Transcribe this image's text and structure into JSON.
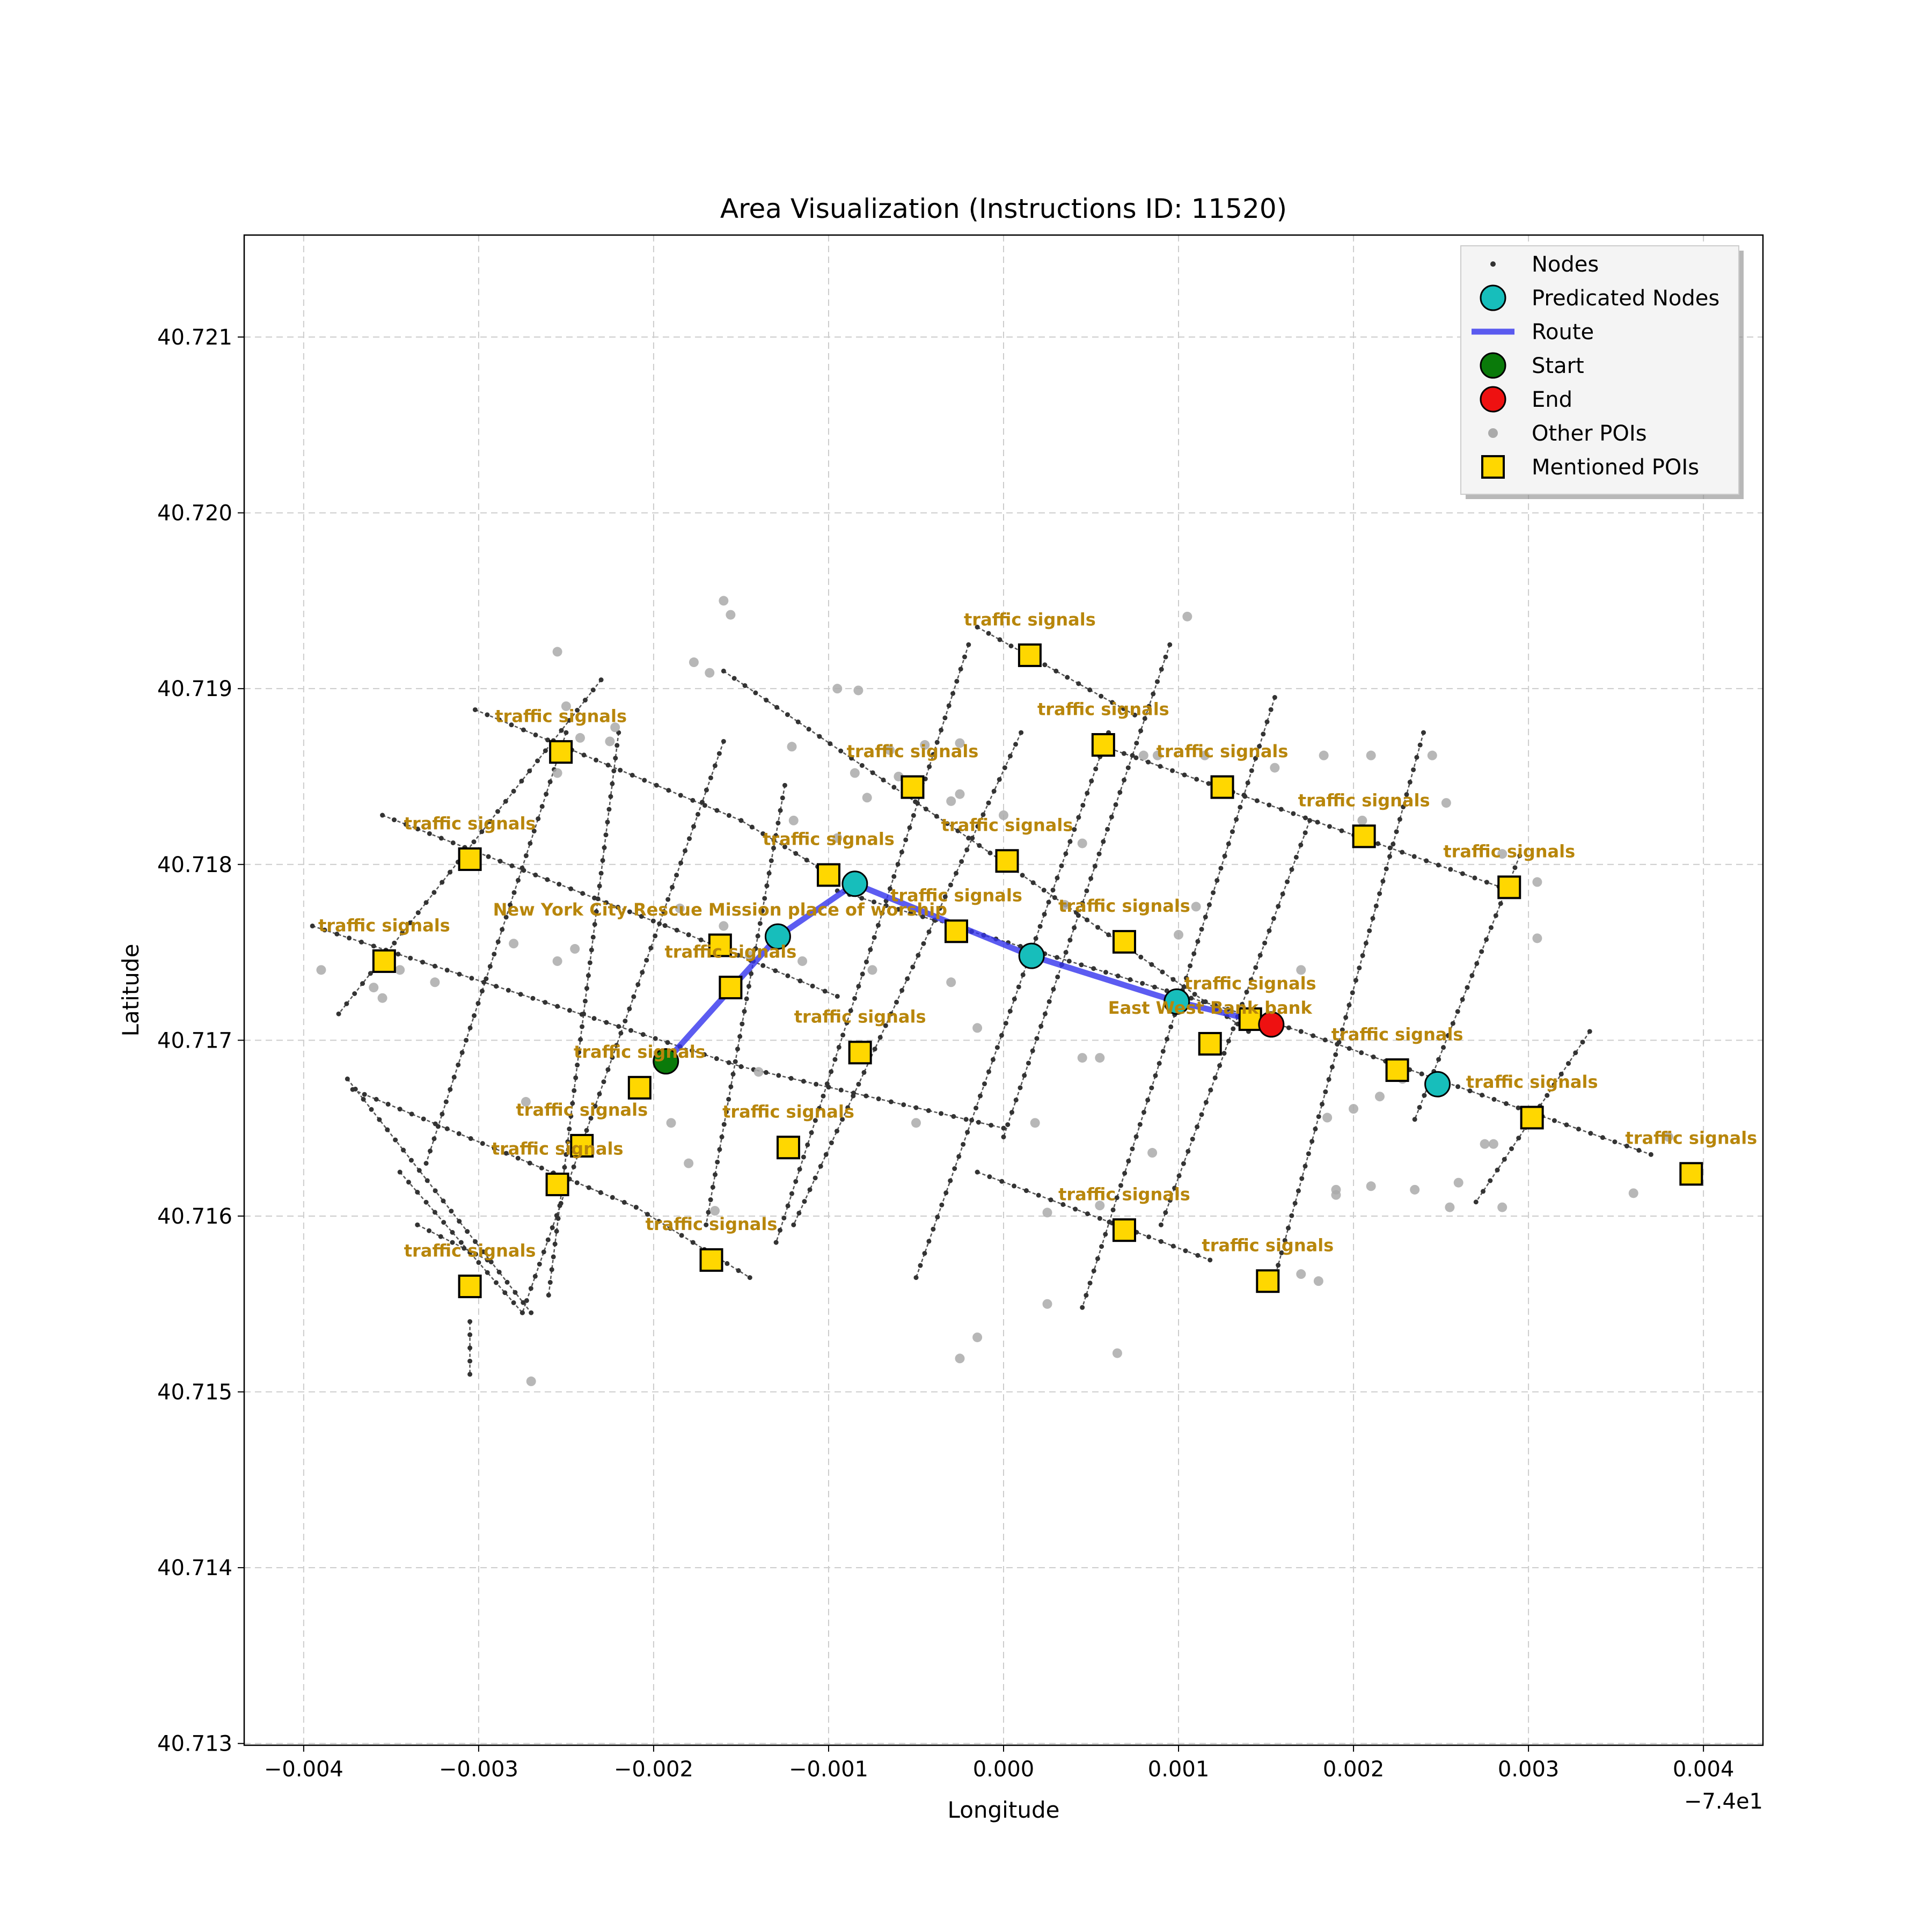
{
  "chart_data": {
    "type": "scatter",
    "title": "Area Visualization (Instructions ID: 11520)",
    "xlabel": "Longitude",
    "ylabel": "Latitude",
    "x_offset_label": "−7.4e1",
    "xlim": [
      -0.00434,
      0.00434
    ],
    "ylim": [
      40.71299,
      40.72158
    ],
    "x_ticks": [
      -0.004,
      -0.003,
      -0.002,
      -0.001,
      0.0,
      0.001,
      0.002,
      0.003,
      0.004
    ],
    "x_tick_labels": [
      "−0.004",
      "−0.003",
      "−0.002",
      "−0.001",
      "0.000",
      "0.001",
      "0.002",
      "0.003",
      "0.004"
    ],
    "y_ticks": [
      40.713,
      40.714,
      40.715,
      40.716,
      40.717,
      40.718,
      40.719,
      40.72,
      40.721
    ],
    "y_tick_labels": [
      "40.713",
      "40.714",
      "40.715",
      "40.716",
      "40.717",
      "40.718",
      "40.719",
      "40.720",
      "40.721"
    ],
    "grid": true,
    "legend_position": "top-right",
    "legend": [
      {
        "key": "nodes",
        "label": "Nodes"
      },
      {
        "key": "predicted",
        "label": "Predicated Nodes"
      },
      {
        "key": "route",
        "label": "Route"
      },
      {
        "key": "start",
        "label": "Start"
      },
      {
        "key": "end",
        "label": "End"
      },
      {
        "key": "other_pois",
        "label": "Other POIs"
      },
      {
        "key": "mentioned_pois",
        "label": "Mentioned POIs"
      }
    ],
    "colors": {
      "nodes": "#333333",
      "roads": "#555555",
      "predicted": "#17bebb",
      "route": "#3333ee",
      "start": "#0a7a0a",
      "end": "#ee1111",
      "other_pois": "#aaaaaa",
      "mentioned_pois": "#ffd700",
      "poi_label": "#b8860b",
      "grid": "#cccccc"
    },
    "road_segments": [
      [
        [
          -0.00395,
          40.71765
        ],
        [
          -0.0015,
          40.71685
        ],
        [
          0.0,
          40.7165
        ]
      ],
      [
        [
          -0.00355,
          40.71828
        ],
        [
          -0.0018,
          40.7176
        ],
        [
          -0.00095,
          40.71725
        ]
      ],
      [
        [
          -0.00302,
          40.71888
        ],
        [
          -0.0015,
          40.71825
        ],
        [
          -0.001,
          40.71795
        ]
      ],
      [
        [
          -0.00372,
          40.71672
        ],
        [
          -0.0021,
          40.71605
        ],
        [
          -0.00145,
          40.71565
        ]
      ],
      [
        [
          -0.00345,
          40.71625
        ],
        [
          -0.00275,
          40.71545
        ]
      ],
      [
        [
          -0.00335,
          40.71595
        ],
        [
          -0.00295,
          40.71575
        ]
      ],
      [
        [
          -0.00095,
          40.71785
        ],
        [
          0.0017,
          40.71705
        ],
        [
          0.0037,
          40.71635
        ]
      ],
      [
        [
          -0.0016,
          40.7191
        ],
        [
          -0.0002,
          40.71815
        ],
        [
          0.0014,
          40.71705
        ]
      ],
      [
        [
          -0.00015,
          40.71935
        ],
        [
          0.00075,
          40.71885
        ]
      ],
      [
        [
          0.00055,
          40.71868
        ],
        [
          0.0029,
          40.71785
        ]
      ],
      [
        [
          -0.00015,
          40.71625
        ],
        [
          0.00118,
          40.71575
        ]
      ],
      [
        [
          -0.0023,
          40.71905
        ],
        [
          -0.0038,
          40.71715
        ]
      ],
      [
        [
          -0.0025,
          40.71875
        ],
        [
          -0.0033,
          40.7163
        ]
      ],
      [
        [
          -0.00375,
          40.71678
        ],
        [
          -0.0027,
          40.71545
        ]
      ],
      [
        [
          -0.00305,
          40.7154
        ],
        [
          -0.00305,
          40.7151
        ]
      ],
      [
        [
          -0.0022,
          40.71875
        ],
        [
          -0.0026,
          40.71555
        ]
      ],
      [
        [
          -0.0016,
          40.7187
        ],
        [
          -0.00275,
          40.71545
        ]
      ],
      [
        [
          -0.00125,
          40.71845
        ],
        [
          -0.0017,
          40.71595
        ]
      ],
      [
        [
          -0.0002,
          40.71925
        ],
        [
          -0.0013,
          40.71585
        ]
      ],
      [
        [
          0.0001,
          40.71875
        ],
        [
          -0.0012,
          40.71595
        ]
      ],
      [
        [
          0.0006,
          40.71875
        ],
        [
          -0.0005,
          40.71565
        ]
      ],
      [
        [
          0.00095,
          40.71925
        ],
        [
          0.0,
          40.71645
        ]
      ],
      [
        [
          0.00155,
          40.71895
        ],
        [
          0.00045,
          40.71548
        ]
      ],
      [
        [
          0.00175,
          40.71825
        ],
        [
          0.0009,
          40.71595
        ]
      ],
      [
        [
          0.0024,
          40.71875
        ],
        [
          0.00155,
          40.71565
        ]
      ],
      [
        [
          0.00335,
          40.71705
        ],
        [
          0.0027,
          40.71608
        ]
      ],
      [
        [
          0.00295,
          40.71805
        ],
        [
          0.00235,
          40.71655
        ]
      ]
    ],
    "route": [
      [
        -0.00193,
        40.71688
      ],
      [
        -0.00129,
        40.71759
      ],
      [
        -0.00085,
        40.71789
      ],
      [
        0.00016,
        40.71748
      ],
      [
        0.00099,
        40.71722
      ],
      [
        0.00153,
        40.71709
      ]
    ],
    "predicted_nodes": [
      [
        -0.00129,
        40.71759
      ],
      [
        -0.00085,
        40.71789
      ],
      [
        0.00016,
        40.71748
      ],
      [
        0.00099,
        40.71722
      ],
      [
        0.00248,
        40.71675
      ]
    ],
    "start": [
      -0.00193,
      40.71688
    ],
    "end": [
      0.00153,
      40.71709
    ],
    "other_pois": [
      [
        -0.00255,
        40.71921
      ],
      [
        -0.0025,
        40.7189
      ],
      [
        -0.00242,
        40.71872
      ],
      [
        -0.00222,
        40.71878
      ],
      [
        -0.00225,
        40.7187
      ],
      [
        -0.00255,
        40.71852
      ],
      [
        -0.00177,
        40.71915
      ],
      [
        -0.00168,
        40.71909
      ],
      [
        -0.0016,
        40.7195
      ],
      [
        -0.00156,
        40.71942
      ],
      [
        -0.00095,
        40.719
      ],
      [
        -0.00083,
        40.71899
      ],
      [
        -0.00121,
        40.71867
      ],
      [
        -0.00065,
        40.71865
      ],
      [
        -0.00045,
        40.71868
      ],
      [
        -0.00025,
        40.71869
      ],
      [
        -0.00085,
        40.71852
      ],
      [
        -0.00078,
        40.71838
      ],
      [
        -0.0006,
        40.7185
      ],
      [
        -0.0003,
        40.71836
      ],
      [
        -0.0012,
        40.71825
      ],
      [
        -0.00095,
        40.71815
      ],
      [
        0.0,
        40.71828
      ],
      [
        0.00045,
        40.71812
      ],
      [
        0.00105,
        40.71941
      ],
      [
        0.00088,
        40.71862
      ],
      [
        0.0008,
        40.71862
      ],
      [
        0.00115,
        40.71862
      ],
      [
        0.00155,
        40.71855
      ],
      [
        0.00183,
        40.71862
      ],
      [
        0.0021,
        40.71862
      ],
      [
        0.00245,
        40.71862
      ],
      [
        0.00253,
        40.71835
      ],
      [
        0.00205,
        40.71825
      ],
      [
        0.00285,
        40.71806
      ],
      [
        0.00305,
        40.7179
      ],
      [
        -0.00255,
        40.71745
      ],
      [
        -0.00245,
        40.71752
      ],
      [
        -0.00185,
        40.71775
      ],
      [
        -0.0016,
        40.71765
      ],
      [
        -0.0028,
        40.71755
      ],
      [
        -0.00345,
        40.7174
      ],
      [
        -0.00325,
        40.71733
      ],
      [
        -0.00355,
        40.71724
      ],
      [
        -0.00075,
        40.7174
      ],
      [
        -0.00025,
        40.7184
      ],
      [
        -0.0003,
        40.71733
      ],
      [
        0.00035,
        40.71777
      ],
      [
        0.0011,
        40.71776
      ],
      [
        0.001,
        40.7176
      ],
      [
        0.0017,
        40.7174
      ],
      [
        0.00305,
        40.71758
      ],
      [
        -0.00273,
        40.71665
      ],
      [
        -0.0019,
        40.71653
      ],
      [
        -0.0018,
        40.7163
      ],
      [
        -0.0014,
        40.71682
      ],
      [
        -0.00145,
        40.71748
      ],
      [
        -0.00115,
        40.71745
      ],
      [
        -0.0005,
        40.71653
      ],
      [
        -0.00015,
        40.71707
      ],
      [
        0.00018,
        40.71653
      ],
      [
        0.00045,
        40.7169
      ],
      [
        0.00055,
        40.7169
      ],
      [
        0.00085,
        40.71636
      ],
      [
        0.00185,
        40.71656
      ],
      [
        0.002,
        40.71661
      ],
      [
        0.00215,
        40.71668
      ],
      [
        0.00228,
        40.71678
      ],
      [
        0.00275,
        40.71641
      ],
      [
        0.0028,
        40.71641
      ],
      [
        0.00235,
        40.71615
      ],
      [
        0.0026,
        40.71619
      ],
      [
        0.00255,
        40.71605
      ],
      [
        0.00285,
        40.71605
      ],
      [
        0.0019,
        40.71615
      ],
      [
        0.0019,
        40.71612
      ],
      [
        0.0021,
        40.71617
      ],
      [
        0.0036,
        40.71613
      ],
      [
        0.0038,
        40.71645
      ],
      [
        0.00025,
        40.71602
      ],
      [
        0.00055,
        40.71606
      ],
      [
        0.0017,
        40.71567
      ],
      [
        0.0018,
        40.71563
      ],
      [
        -0.00165,
        40.71603
      ],
      [
        -0.00025,
        40.71519
      ],
      [
        -0.00015,
        40.71531
      ],
      [
        0.00025,
        40.7155
      ],
      [
        0.00065,
        40.71522
      ],
      [
        -0.0027,
        40.71506
      ],
      [
        -0.0039,
        40.7174
      ],
      [
        -0.0036,
        40.7173
      ]
    ],
    "mentioned_pois": [
      {
        "x": 0.00015,
        "y": 40.71919,
        "label": "traffic signals",
        "label_dx": 0.0,
        "label_dy": 0.00017
      },
      {
        "x": -0.00253,
        "y": 40.71864,
        "label": "traffic signals",
        "label_dx": 0.0,
        "label_dy": 0.00017
      },
      {
        "x": 0.00057,
        "y": 40.71868,
        "label": "traffic signals",
        "label_dx": 0.0,
        "label_dy": 0.00017
      },
      {
        "x": -0.00052,
        "y": 40.71844,
        "label": "traffic signals",
        "label_dx": 0.0,
        "label_dy": 0.00017
      },
      {
        "x": 0.00125,
        "y": 40.71844,
        "label": "traffic signals",
        "label_dx": 0.0,
        "label_dy": 0.00017
      },
      {
        "x": 0.00206,
        "y": 40.71816,
        "label": "traffic signals",
        "label_dx": 0.0,
        "label_dy": 0.00017
      },
      {
        "x": -0.00305,
        "y": 40.71803,
        "label": "traffic signals",
        "label_dx": 0.0,
        "label_dy": 0.00017
      },
      {
        "x": 2e-05,
        "y": 40.71802,
        "label": "traffic signals",
        "label_dx": 0.0,
        "label_dy": 0.00017
      },
      {
        "x": -0.001,
        "y": 40.71794,
        "label": "traffic signals",
        "label_dx": 0.0,
        "label_dy": 0.00017
      },
      {
        "x": 0.00289,
        "y": 40.71787,
        "label": "traffic signals",
        "label_dx": 0.0,
        "label_dy": 0.00017
      },
      {
        "x": -0.00027,
        "y": 40.71762,
        "label": "traffic signals",
        "label_dx": 0.0,
        "label_dy": 0.00017
      },
      {
        "x": -0.00354,
        "y": 40.71745,
        "label": "traffic signals",
        "label_dx": 0.0,
        "label_dy": 0.00017
      },
      {
        "x": 0.00069,
        "y": 40.71756,
        "label": "traffic signals",
        "label_dx": 0.0,
        "label_dy": 0.00017
      },
      {
        "x": -0.00162,
        "y": 40.71754,
        "label": "New York City Rescue Mission place of worship",
        "label_dx": 0.0,
        "label_dy": 0.00017
      },
      {
        "x": -0.00156,
        "y": 40.7173,
        "label": "traffic signals",
        "label_dx": 0.0,
        "label_dy": 0.00017
      },
      {
        "x": 0.00141,
        "y": 40.71712,
        "label": "traffic signals",
        "label_dx": 0.0,
        "label_dy": 0.00017
      },
      {
        "x": 0.00118,
        "y": 40.71698,
        "label": "East West Bank bank",
        "label_dx": 0.0,
        "label_dy": 0.00017
      },
      {
        "x": -0.00082,
        "y": 40.71693,
        "label": "traffic signals",
        "label_dx": 0.0,
        "label_dy": 0.00017
      },
      {
        "x": -0.00208,
        "y": 40.71673,
        "label": "traffic signals",
        "label_dx": 0.0,
        "label_dy": 0.00017
      },
      {
        "x": 0.00225,
        "y": 40.71683,
        "label": "traffic signals",
        "label_dx": 0.0,
        "label_dy": 0.00017
      },
      {
        "x": 0.00302,
        "y": 40.71656,
        "label": "traffic signals",
        "label_dx": 0.0,
        "label_dy": 0.00017
      },
      {
        "x": -0.00241,
        "y": 40.7164,
        "label": "traffic signals",
        "label_dx": 0.0,
        "label_dy": 0.00017
      },
      {
        "x": -0.00123,
        "y": 40.71639,
        "label": "traffic signals",
        "label_dx": 0.0,
        "label_dy": 0.00017
      },
      {
        "x": 0.00393,
        "y": 40.71624,
        "label": "traffic signals",
        "label_dx": 0.0,
        "label_dy": 0.00017
      },
      {
        "x": -0.00255,
        "y": 40.71618,
        "label": "traffic signals",
        "label_dx": 0.0,
        "label_dy": 0.00017
      },
      {
        "x": 0.00069,
        "y": 40.71592,
        "label": "traffic signals",
        "label_dx": 0.0,
        "label_dy": 0.00017
      },
      {
        "x": -0.00167,
        "y": 40.71575,
        "label": "traffic signals",
        "label_dx": 0.0,
        "label_dy": 0.00017
      },
      {
        "x": 0.00151,
        "y": 40.71563,
        "label": "traffic signals",
        "label_dx": 0.0,
        "label_dy": 0.00017
      },
      {
        "x": -0.00305,
        "y": 40.7156,
        "label": "traffic signals",
        "label_dx": 0.0,
        "label_dy": 0.00017
      }
    ]
  }
}
